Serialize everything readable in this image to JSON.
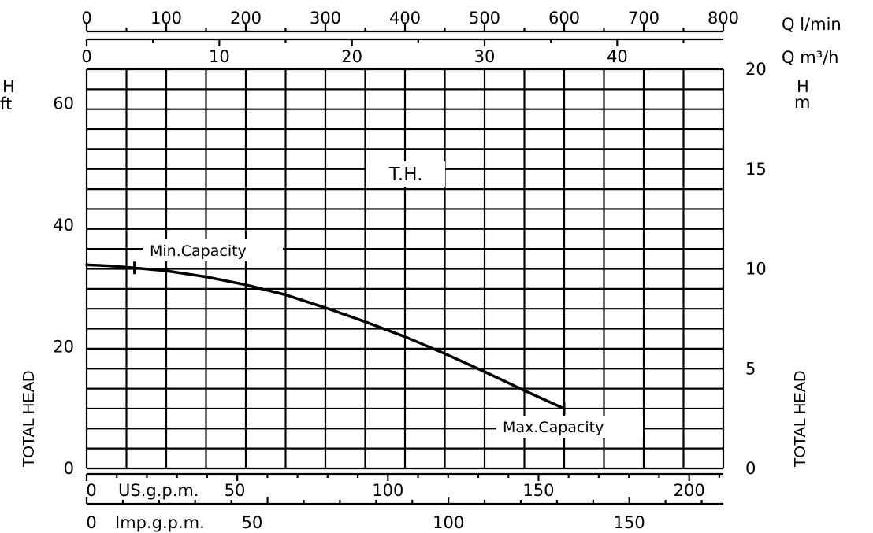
{
  "chart_data": {
    "type": "line",
    "axes": {
      "top_lmin": {
        "unit_label": "Q  l/min",
        "range": [
          0,
          800
        ],
        "ticks": [
          "0",
          "100",
          "200",
          "300",
          "400",
          "500",
          "600",
          "700",
          "800"
        ]
      },
      "top_m3h": {
        "unit_label": "Q  m³/h",
        "range": [
          0,
          48
        ],
        "ticks": [
          "0",
          "10",
          "20",
          "30",
          "40"
        ]
      },
      "left_ft": {
        "unit_top": "H",
        "unit_bottom": "ft",
        "range": [
          0,
          65.6
        ],
        "ticks": [
          "0",
          "20",
          "40",
          "60"
        ],
        "axis_label": "TOTAL HEAD"
      },
      "right_m": {
        "unit_top": "H",
        "unit_bottom": "m",
        "range": [
          0,
          20
        ],
        "ticks": [
          "0",
          "5",
          "10",
          "15",
          "20"
        ],
        "axis_label": "TOTAL HEAD"
      },
      "bottom_usgpm": {
        "unit_label": "US.g.p.m.",
        "range": [
          0,
          211
        ],
        "ticks": [
          "0",
          "50",
          "100",
          "150",
          "200"
        ]
      },
      "bottom_impgpm": {
        "unit_label": "Imp.g.p.m.",
        "range": [
          0,
          176
        ],
        "ticks": [
          "0",
          "50",
          "100",
          "150"
        ]
      }
    },
    "grid": true,
    "series": [
      {
        "name": "T.H.",
        "x_lmin": [
          0,
          30,
          60,
          100,
          150,
          200,
          250,
          300,
          350,
          400,
          450,
          500,
          550,
          600
        ],
        "y_m": [
          10.2,
          10.15,
          10.05,
          9.9,
          9.6,
          9.2,
          8.7,
          8.05,
          7.35,
          6.6,
          5.75,
          4.85,
          3.9,
          3.0
        ]
      }
    ],
    "annotations": [
      {
        "text": "T.H."
      },
      {
        "text": "Min.Capacity",
        "x_lmin": 60
      },
      {
        "text": "Max.Capacity",
        "x_lmin": 600
      }
    ]
  }
}
